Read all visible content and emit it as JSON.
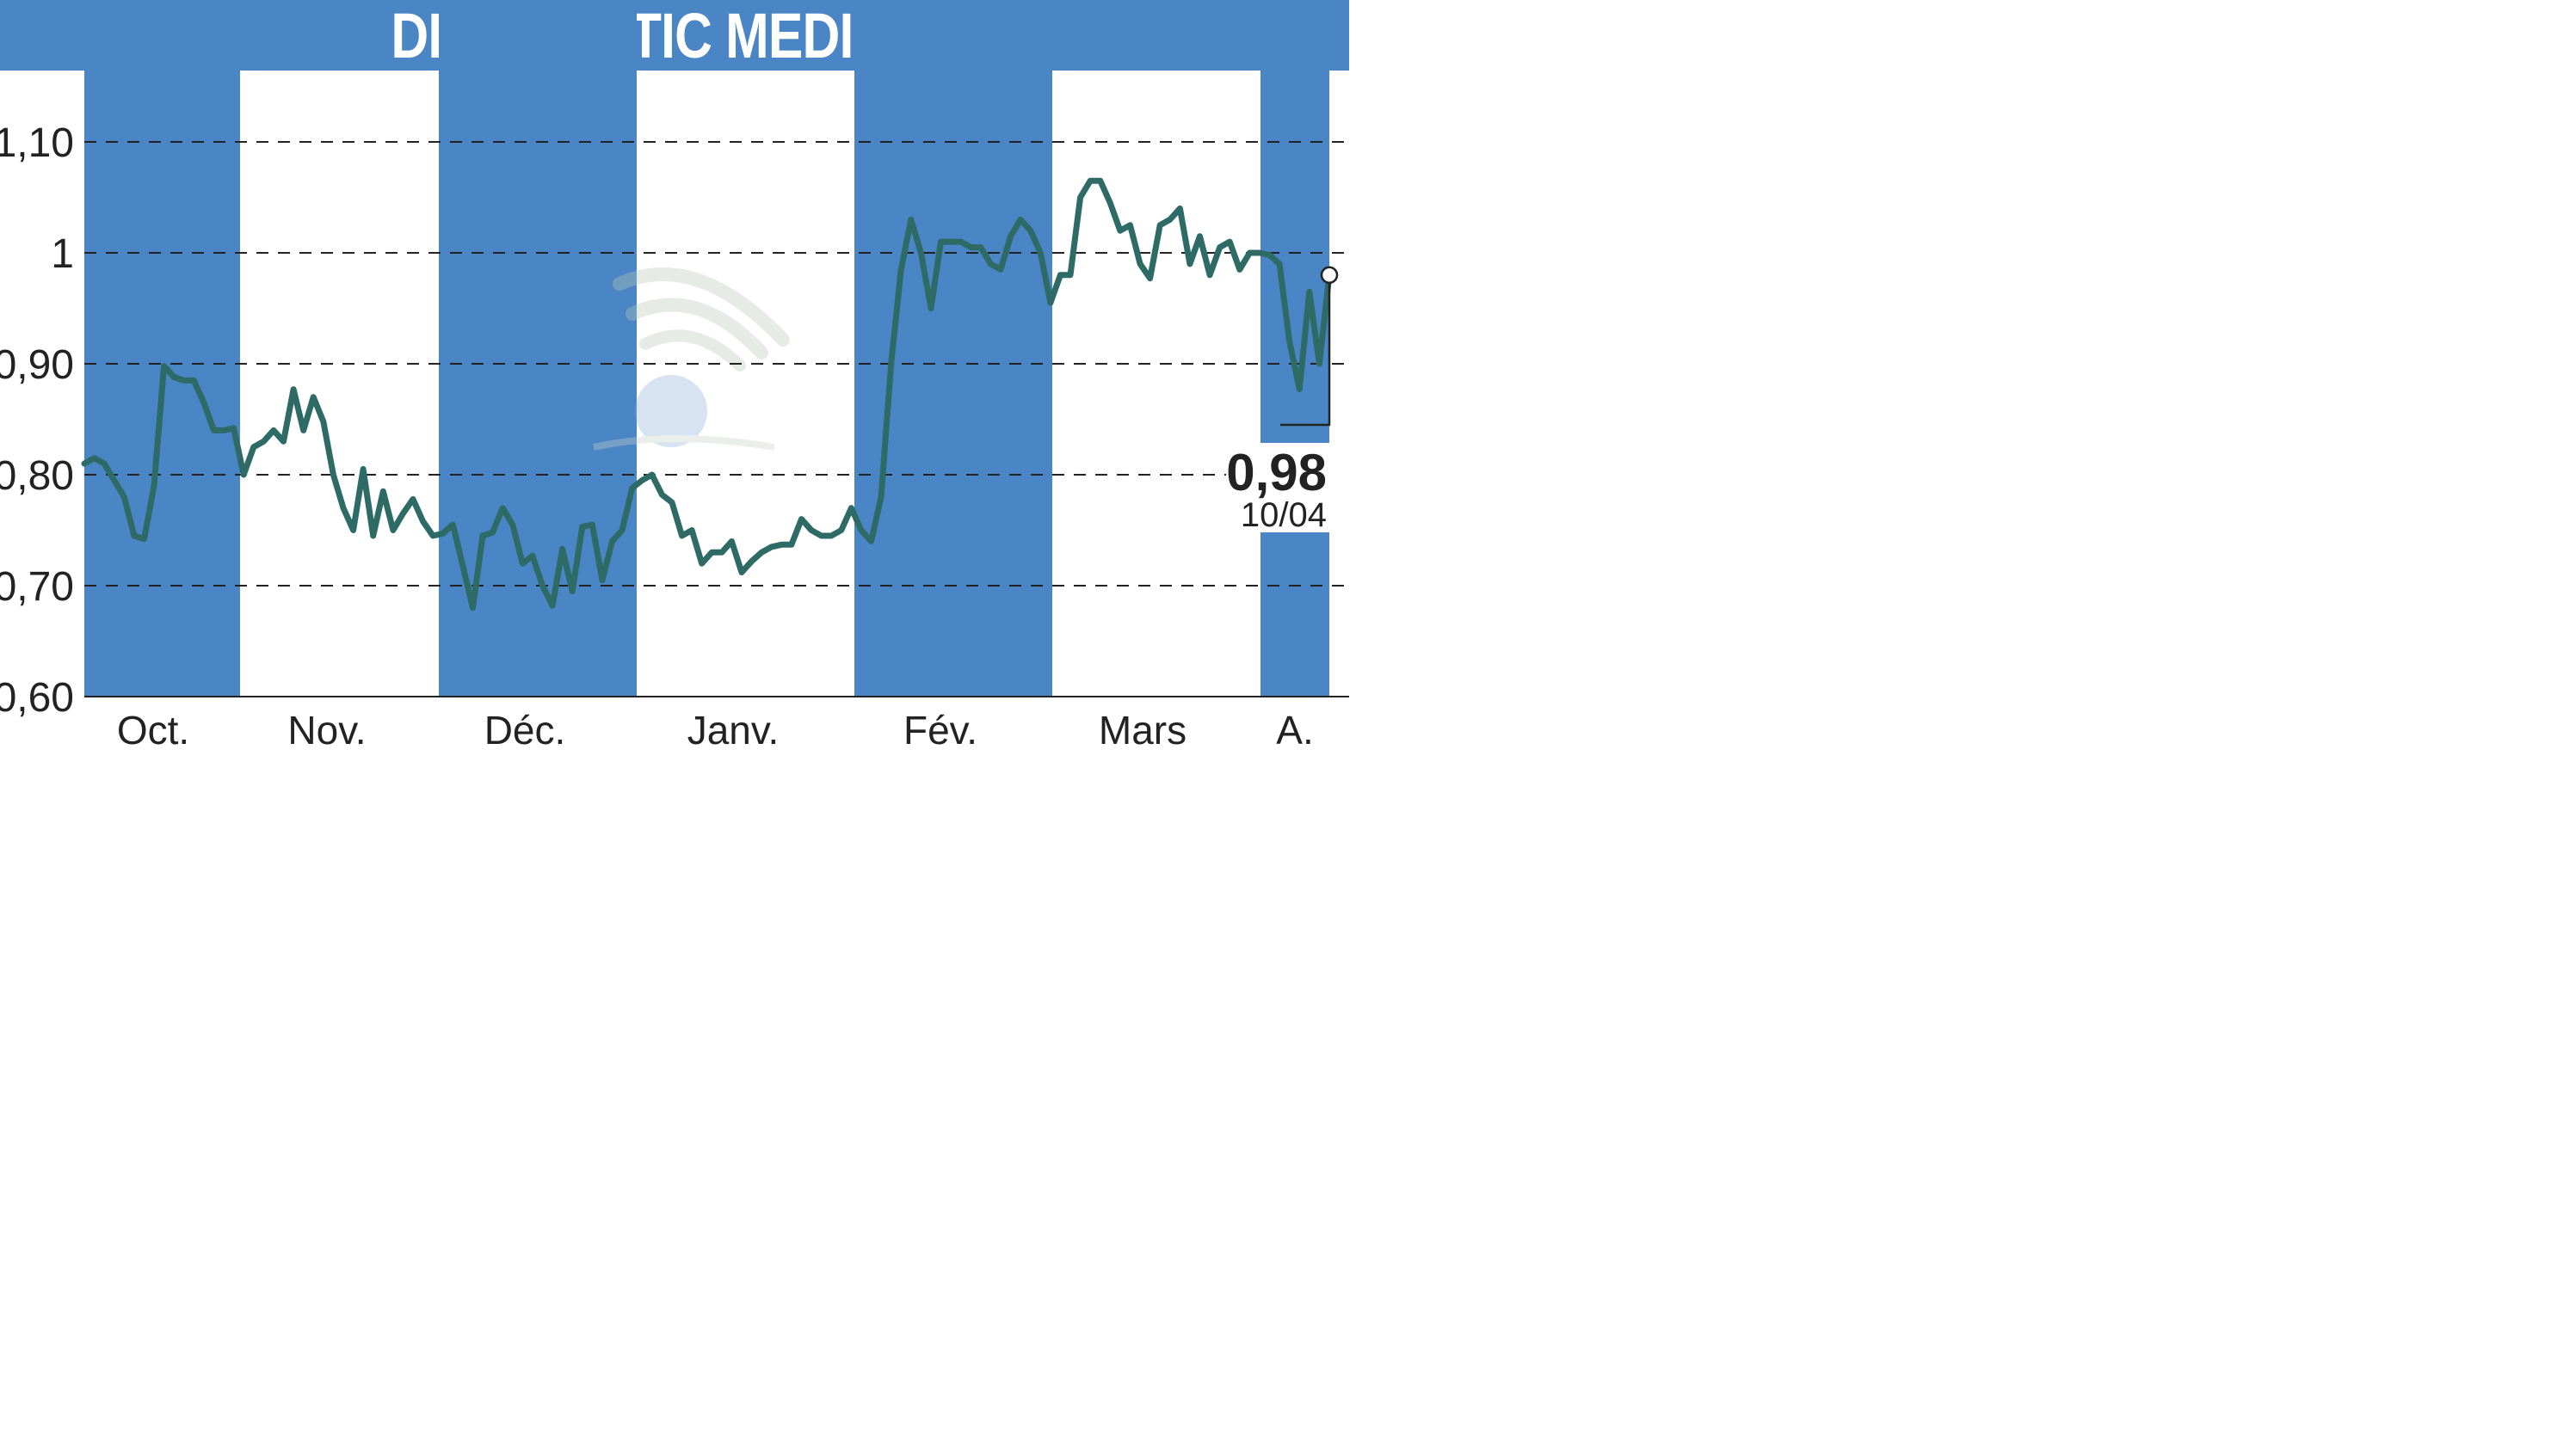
{
  "title": "DIAGNOSTIC MEDICAL",
  "colors": {
    "title_bg": "#4a86c5",
    "band": "#4a86c5",
    "line": "#2e6b67",
    "grid": "#222222"
  },
  "last_value": {
    "value": "0,98",
    "date": "10/04"
  },
  "chart_data": {
    "type": "line",
    "title": "DIAGNOSTIC MEDICAL",
    "ylim": [
      0.6,
      1.1
    ],
    "yticks": [
      {
        "v": 1.1,
        "label": "1,10"
      },
      {
        "v": 1.0,
        "label": "1"
      },
      {
        "v": 0.9,
        "label": "0,90"
      },
      {
        "v": 0.8,
        "label": "0,80"
      },
      {
        "v": 0.7,
        "label": "0,70"
      },
      {
        "v": 0.6,
        "label": "0,60"
      }
    ],
    "months": [
      {
        "label": "Oct.",
        "shaded": true
      },
      {
        "label": "Nov.",
        "shaded": false
      },
      {
        "label": "Déc.",
        "shaded": true
      },
      {
        "label": "Janv.",
        "shaded": false
      },
      {
        "label": "Fév.",
        "shaded": true
      },
      {
        "label": "Mars",
        "shaded": false
      },
      {
        "label": "A.",
        "shaded": true
      }
    ],
    "grid": true,
    "series": [
      {
        "values": [
          0.81,
          0.815,
          0.81,
          0.795,
          0.78,
          0.745,
          0.742,
          0.79,
          0.898,
          0.888,
          0.885,
          0.885,
          0.865,
          0.84,
          0.84,
          0.842,
          0.8,
          0.825,
          0.83,
          0.84,
          0.83,
          0.877,
          0.84,
          0.87,
          0.848,
          0.8,
          0.77,
          0.75,
          0.805,
          0.745,
          0.785,
          0.75,
          0.765,
          0.778,
          0.758,
          0.745,
          0.747,
          0.755,
          0.718,
          0.68,
          0.745,
          0.748,
          0.77,
          0.755,
          0.72,
          0.727,
          0.7,
          0.682,
          0.733,
          0.695,
          0.753,
          0.755,
          0.705,
          0.74,
          0.75,
          0.788,
          0.795,
          0.8,
          0.782,
          0.775,
          0.745,
          0.75,
          0.72,
          0.73,
          0.73,
          0.74,
          0.712,
          0.722,
          0.73,
          0.735,
          0.737,
          0.737,
          0.76,
          0.75,
          0.745,
          0.745,
          0.75,
          0.77,
          0.75,
          0.74,
          0.78,
          0.9,
          0.985,
          1.03,
          1.0,
          0.95,
          1.01,
          1.01,
          1.01,
          1.005,
          1.005,
          0.99,
          0.985,
          1.015,
          1.03,
          1.02,
          1.0,
          0.955,
          0.98,
          0.98,
          1.05,
          1.065,
          1.065,
          1.045,
          1.02,
          1.025,
          0.99,
          0.977,
          1.025,
          1.03,
          1.04,
          0.99,
          1.015,
          0.98,
          1.005,
          1.01,
          0.985,
          1.0,
          1.0,
          0.998,
          0.99,
          0.92,
          0.877,
          0.965,
          0.9,
          0.98
        ]
      }
    ]
  }
}
